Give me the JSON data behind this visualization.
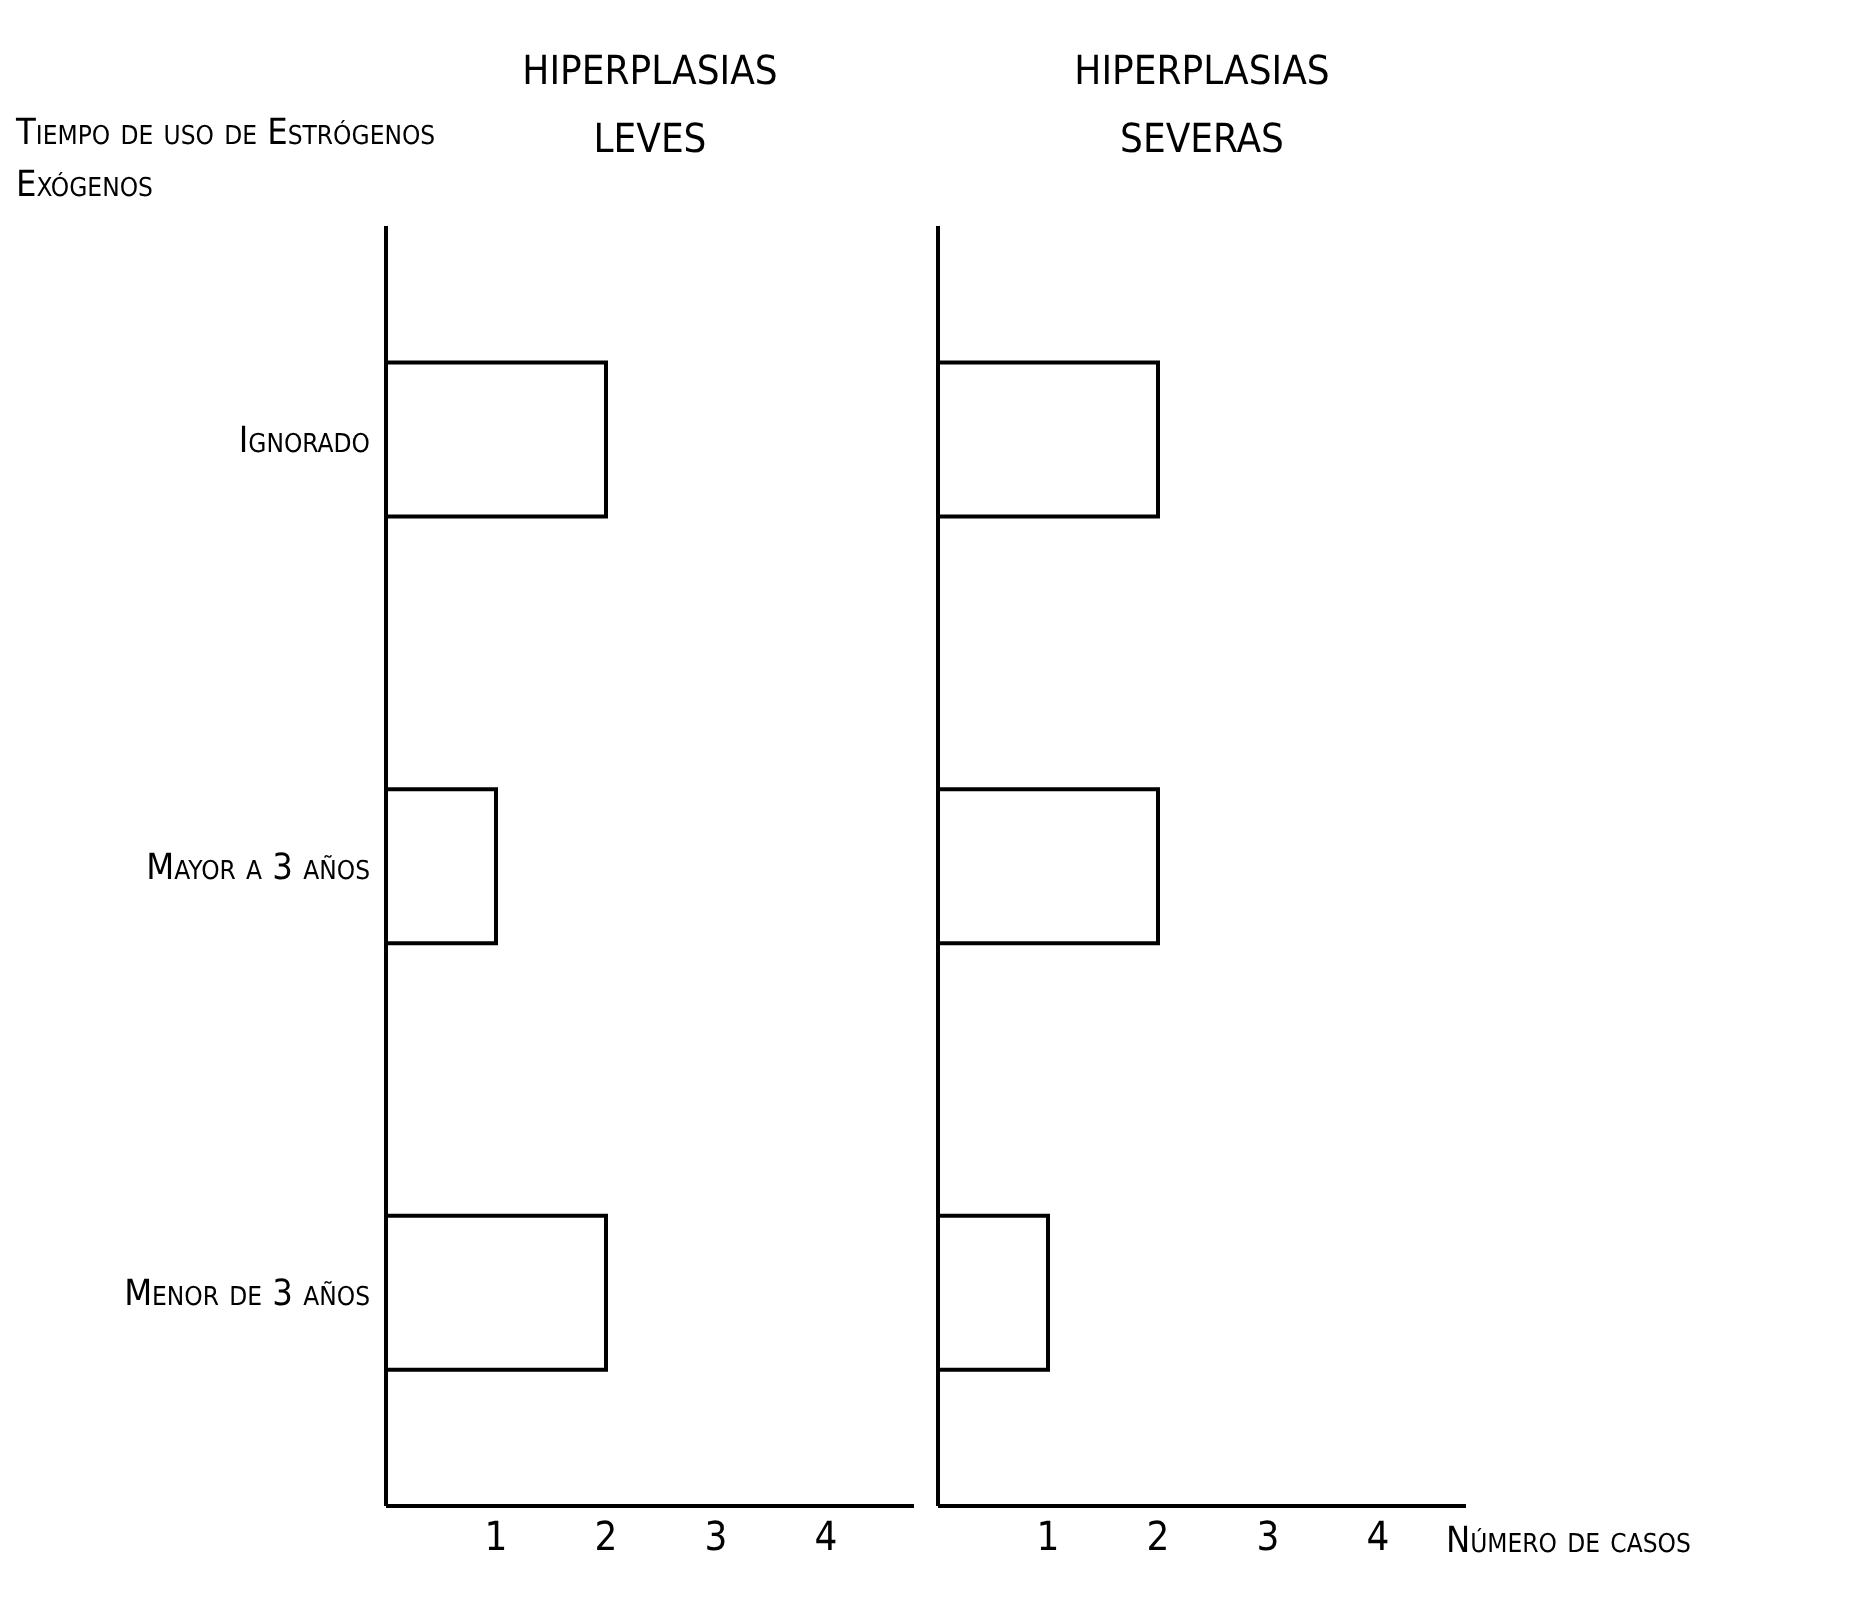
{
  "chart_data": [
    {
      "type": "bar",
      "orientation": "horizontal",
      "title": "HIPERPLASIAS LEVES",
      "ylabel": "Tiempo de uso de Estrógenos Exógenos",
      "categories": [
        "Ignorado",
        "Mayor a 3 años",
        "Menor de 3 años"
      ],
      "values": [
        2,
        1,
        2
      ],
      "color": "#000000",
      "xlim": [
        0,
        4.8
      ],
      "xticks": [
        1,
        2,
        3,
        4
      ],
      "grid": false,
      "legend": false
    },
    {
      "type": "bar",
      "orientation": "horizontal",
      "title": "HIPERPLASIAS SEVERAS",
      "xlabel": "Número de casos",
      "categories": [
        null,
        null,
        null
      ],
      "values": [
        2,
        2,
        1
      ],
      "color": "#000000",
      "xlim": [
        0,
        4.8
      ],
      "xticks": [
        1,
        2,
        3,
        4
      ],
      "tick_labels": "x",
      "grid": false,
      "legend": false
    }
  ]
}
